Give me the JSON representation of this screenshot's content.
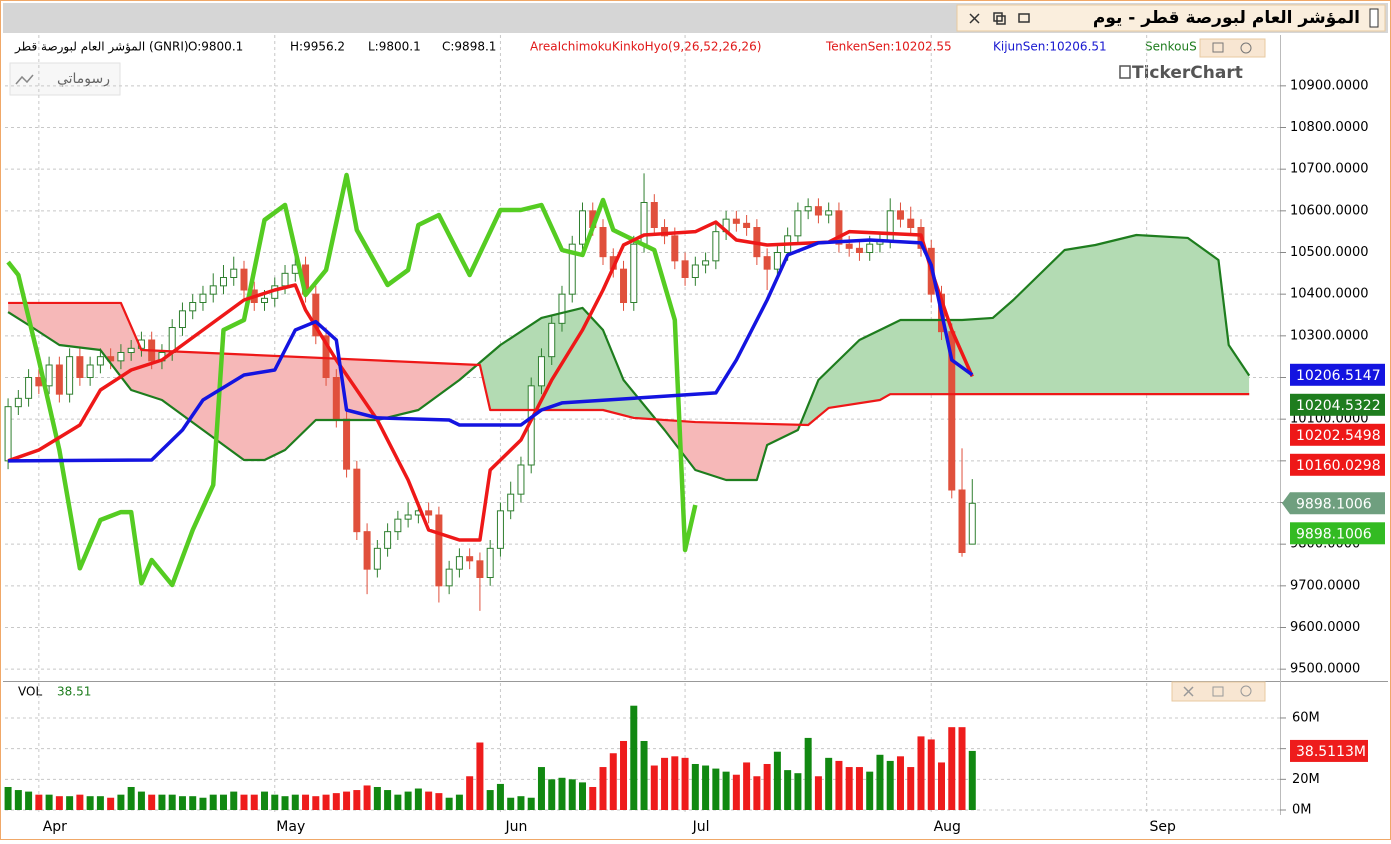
{
  "chart_data": {
    "type": "ichimoku",
    "title": "المؤشر العام لبورصة قطر - يوم",
    "info": [
      {
        "text": "المؤشر العام لبورصة قطر (GNRI)",
        "color": "#000000"
      },
      {
        "text": "O:9800.1",
        "color": "#000000"
      },
      {
        "text": "H:9956.2",
        "color": "#000000"
      },
      {
        "text": "L:9800.1",
        "color": "#000000"
      },
      {
        "text": "C:9898.1",
        "color": "#000000"
      },
      {
        "text": "AreaIchimokuKinkoHyo(9,26,52,26,26)",
        "color": "#e01818"
      },
      {
        "text": "TenkenSen:10202.55",
        "color": "#e01818"
      },
      {
        "text": "KijunSen:10206.51",
        "color": "#1818d0"
      },
      {
        "text": "SenkouS",
        "color": "#1e7d1e"
      }
    ],
    "drawings_button": "رسوماتي",
    "logo": "TickerChart",
    "xlim": [
      -0.3,
      124
    ],
    "xticks": [
      {
        "value": 3,
        "label": "Apr"
      },
      {
        "value": 26,
        "label": "May"
      },
      {
        "value": 48,
        "label": "Jun"
      },
      {
        "value": 66,
        "label": "Jul"
      },
      {
        "value": 90,
        "label": "Aug"
      },
      {
        "value": 111,
        "label": "Sep"
      }
    ],
    "ylim": [
      9474,
      11022
    ],
    "yticks": [
      {
        "value": 9500,
        "label": "9500.0000"
      },
      {
        "value": 9600,
        "label": "9600.0000"
      },
      {
        "value": 9700,
        "label": "9700.0000"
      },
      {
        "value": 9800,
        "label": "9800.0000"
      },
      {
        "value": 9900,
        "label": "9900.0000"
      },
      {
        "value": 10000,
        "label": "10000.0000"
      },
      {
        "value": 10100,
        "label": "10100.0000"
      },
      {
        "value": 10200,
        "label": "10200.0000"
      },
      {
        "value": 10300,
        "label": "10300.0000"
      },
      {
        "value": 10400,
        "label": "10400.0000"
      },
      {
        "value": 10500,
        "label": "10500.0000"
      },
      {
        "value": 10600,
        "label": "10600.0000"
      },
      {
        "value": 10700,
        "label": "10700.0000"
      },
      {
        "value": 10800,
        "label": "10800.0000"
      },
      {
        "value": 10900,
        "label": "10900.0000"
      }
    ],
    "grid": true,
    "candles": {
      "up_color": "#2f7f2f",
      "down_color": "#e0503c",
      "open": [
        10000,
        10130,
        10150,
        10200,
        10180,
        10230,
        10160,
        10250,
        10200,
        10230,
        10250,
        10240,
        10260,
        10270,
        10290,
        10240,
        10260,
        10320,
        10360,
        10380,
        10400,
        10420,
        10440,
        10460,
        10410,
        10380,
        10390,
        10420,
        10450,
        10470,
        10400,
        10300,
        10200,
        10100,
        9980,
        9830,
        9740,
        9790,
        9830,
        9860,
        9870,
        9880,
        9870,
        9700,
        9740,
        9770,
        9760,
        9720,
        9790,
        9880,
        9920,
        9990,
        10180,
        10250,
        10330,
        10400,
        10520,
        10600,
        10560,
        10490,
        10460,
        10380,
        10520,
        10620,
        10560,
        10540,
        10480,
        10440,
        10470,
        10480,
        10550,
        10580,
        10570,
        10560,
        10490,
        10460,
        10500,
        10540,
        10600,
        10610,
        10590,
        10600,
        10520,
        10510,
        10500,
        10520,
        10530,
        10600,
        10580,
        10560,
        10510,
        10400,
        10310,
        9930,
        9800.1
      ],
      "high": [
        10150,
        10170,
        10220,
        10220,
        10250,
        10250,
        10270,
        10270,
        10250,
        10270,
        10270,
        10280,
        10290,
        10310,
        10310,
        10280,
        10340,
        10380,
        10400,
        10420,
        10450,
        10470,
        10490,
        10480,
        10430,
        10410,
        10440,
        10470,
        10500,
        10490,
        10420,
        10320,
        10220,
        10120,
        10000,
        9850,
        9810,
        9850,
        9880,
        9900,
        9900,
        9900,
        9890,
        9760,
        9790,
        9790,
        9780,
        9810,
        9900,
        9950,
        10010,
        10200,
        10270,
        10350,
        10420,
        10540,
        10620,
        10620,
        10580,
        10510,
        10480,
        10540,
        10690,
        10640,
        10580,
        10560,
        10500,
        10490,
        10500,
        10570,
        10600,
        10600,
        10590,
        10580,
        10510,
        10520,
        10560,
        10620,
        10630,
        10630,
        10620,
        10620,
        10540,
        10530,
        10540,
        10550,
        10630,
        10620,
        10610,
        10580,
        10530,
        10420,
        10330,
        10030,
        9956.2
      ],
      "low": [
        9980,
        10110,
        10130,
        10160,
        10160,
        10140,
        10140,
        10180,
        10180,
        10210,
        10220,
        10220,
        10240,
        10250,
        10220,
        10220,
        10240,
        10300,
        10340,
        10360,
        10380,
        10400,
        10420,
        10390,
        10360,
        10360,
        10370,
        10400,
        10430,
        10380,
        10280,
        10180,
        10080,
        9960,
        9810,
        9680,
        9720,
        9770,
        9810,
        9840,
        9850,
        9850,
        9660,
        9680,
        9720,
        9740,
        9640,
        9700,
        9770,
        9860,
        9900,
        9970,
        10160,
        10230,
        10310,
        10380,
        10500,
        10540,
        10470,
        10440,
        10360,
        10360,
        10500,
        10540,
        10520,
        10460,
        10420,
        10420,
        10450,
        10460,
        10530,
        10550,
        10540,
        10470,
        10410,
        10440,
        10480,
        10520,
        10580,
        10570,
        10570,
        10500,
        10490,
        10480,
        10480,
        10500,
        10510,
        10560,
        10540,
        10490,
        10380,
        10290,
        9910,
        9770,
        9800.1
      ],
      "close": [
        10130,
        10150,
        10200,
        10180,
        10230,
        10160,
        10250,
        10200,
        10230,
        10250,
        10240,
        10260,
        10270,
        10290,
        10240,
        10260,
        10320,
        10360,
        10380,
        10400,
        10420,
        10440,
        10460,
        10410,
        10380,
        10390,
        10420,
        10450,
        10470,
        10400,
        10300,
        10200,
        10100,
        9980,
        9830,
        9740,
        9790,
        9830,
        9860,
        9870,
        9880,
        9870,
        9700,
        9740,
        9770,
        9760,
        9720,
        9790,
        9880,
        9920,
        9990,
        10180,
        10250,
        10330,
        10400,
        10520,
        10600,
        10560,
        10490,
        10460,
        10380,
        10520,
        10620,
        10560,
        10540,
        10480,
        10440,
        10470,
        10480,
        10550,
        10580,
        10570,
        10560,
        10490,
        10460,
        10500,
        10540,
        10600,
        10610,
        10590,
        10600,
        10520,
        10510,
        10500,
        10520,
        10530,
        10600,
        10580,
        10560,
        10510,
        10400,
        10310,
        9930,
        9780,
        9898.1
      ]
    },
    "cloud": {
      "up_color": "#b3dbb3",
      "down_color": "#f6b8b8"
    },
    "lines": [
      {
        "color": "#1e7d1e",
        "width": 2.2,
        "x": [
          0,
          2,
          5,
          9,
          12,
          15,
          19,
          23,
          25,
          27,
          30,
          36,
          40,
          44,
          48,
          52,
          56,
          58,
          60,
          64,
          67,
          70,
          73,
          74,
          77,
          79,
          83,
          87,
          93,
          96,
          98,
          101,
          103,
          106,
          110,
          115,
          118,
          119,
          121
        ],
        "values": [
          10357,
          10326,
          10278,
          10266,
          10170,
          10146,
          10074,
          10002,
          10002,
          10026,
          10098,
          10098,
          10122,
          10194,
          10278,
          10343,
          10367,
          10314,
          10194,
          10074,
          9978,
          9954,
          9954,
          10038,
          10074,
          10194,
          10290,
          10338,
          10338,
          10343,
          10386,
          10458,
          10506,
          10518,
          10542,
          10535,
          10482,
          10278,
          10204.5322
        ]
      },
      {
        "color": "#ee1818",
        "width": 2.2,
        "x": [
          0,
          11,
          13,
          46,
          47,
          58,
          61,
          67,
          78,
          80,
          85,
          86,
          121
        ],
        "values": [
          10379,
          10379,
          10266,
          10230,
          10122,
          10122,
          10103,
          10093,
          10086,
          10127,
          10146,
          10160,
          10160.0298
        ]
      },
      {
        "color": "#55cc22",
        "width": 4.5,
        "x": [
          0,
          1,
          3,
          5,
          7,
          9,
          11,
          12,
          13,
          14,
          16,
          18,
          20,
          21,
          23,
          25,
          27,
          28,
          29,
          31,
          33,
          34,
          37,
          39,
          40,
          42,
          45,
          48,
          50,
          52,
          54,
          56,
          58,
          59,
          63,
          65,
          66,
          67
        ],
        "values": [
          10477,
          10446,
          10242,
          10026,
          9742,
          9858,
          9877,
          9877,
          9706,
          9762,
          9702,
          9834,
          9942,
          10314,
          10338,
          10578,
          10614,
          10506,
          10398,
          10458,
          10686,
          10554,
          10422,
          10458,
          10566,
          10590,
          10446,
          10602,
          10602,
          10614,
          10506,
          10494,
          10626,
          10554,
          10506,
          10338,
          9786,
          9894
        ]
      },
      {
        "color": "#ee1818",
        "width": 3.5,
        "x": [
          0,
          3,
          7,
          9,
          12,
          15,
          19,
          23,
          26,
          28,
          29,
          32,
          36,
          39,
          41,
          44,
          46,
          47,
          50,
          53,
          56,
          58,
          60,
          62,
          67,
          69,
          71,
          74,
          80,
          82,
          89,
          90,
          92,
          94
        ],
        "values": [
          10000,
          10026,
          10086,
          10170,
          10218,
          10242,
          10314,
          10386,
          10410,
          10422,
          10362,
          10242,
          10098,
          9954,
          9834,
          9810,
          9810,
          9978,
          10050,
          10194,
          10314,
          10410,
          10518,
          10542,
          10550,
          10573,
          10530,
          10518,
          10525,
          10550,
          10542,
          10458,
          10314,
          10202.55
        ]
      },
      {
        "color": "#1414e0",
        "width": 3.5,
        "x": [
          0,
          14,
          17,
          19,
          23,
          26,
          28,
          30,
          32,
          33,
          36,
          43,
          44,
          50,
          52,
          54,
          69,
          71,
          74,
          76,
          79,
          84,
          89,
          90,
          92,
          94
        ],
        "values": [
          10000,
          10002,
          10074,
          10146,
          10206,
          10218,
          10314,
          10334,
          10290,
          10122,
          10103,
          10098,
          10086,
          10086,
          10122,
          10139,
          10163,
          10242,
          10386,
          10494,
          10523,
          10530,
          10523,
          10470,
          10242,
          10206.51
        ]
      }
    ],
    "last_values": [
      {
        "value": 10206.5147,
        "color": "#1414e0"
      },
      {
        "value": 10204.5322,
        "color": "#1e7d1e"
      },
      {
        "value": 10202.5498,
        "color": "#ee1818"
      },
      {
        "value": 10160.0298,
        "color": "#ee1818"
      },
      {
        "value": 9898.1006,
        "color": "#6f9f7f",
        "arrow": true
      },
      {
        "value": 9898.1006,
        "color": "#33bb22"
      }
    ],
    "volume": {
      "title": "VOL",
      "value": 38.51,
      "up_color": "#118811",
      "down_color": "#ee1c1c",
      "ylim": [
        0,
        82.8
      ],
      "yticks": [
        {
          "value": 0,
          "label": "0M"
        },
        {
          "value": 20,
          "label": "20M"
        },
        {
          "value": 40,
          "label": "40M"
        },
        {
          "value": 60,
          "label": "60M"
        }
      ],
      "values": [
        15,
        13,
        12,
        10,
        10,
        9,
        9,
        10,
        9,
        9,
        8,
        10,
        15,
        12,
        10,
        10,
        10,
        9,
        9,
        8,
        10,
        10,
        12,
        10,
        10,
        12,
        10,
        9,
        10,
        10,
        9,
        10,
        11,
        12,
        13,
        16,
        15,
        13,
        10,
        12,
        14,
        12,
        11,
        8,
        10,
        22,
        44,
        13,
        17,
        8,
        9,
        8,
        28,
        20,
        21,
        20,
        18,
        15,
        28,
        37,
        45,
        68,
        45,
        29,
        34,
        35,
        34,
        30,
        29,
        27,
        25,
        23,
        31,
        22,
        30,
        38,
        26,
        24,
        47,
        22,
        34,
        32,
        28,
        28,
        25,
        36,
        32,
        35,
        28,
        48,
        46,
        31,
        54,
        54,
        38.5113
      ],
      "last_label": {
        "value": 38.5113,
        "label": "38.5113M"
      }
    }
  }
}
